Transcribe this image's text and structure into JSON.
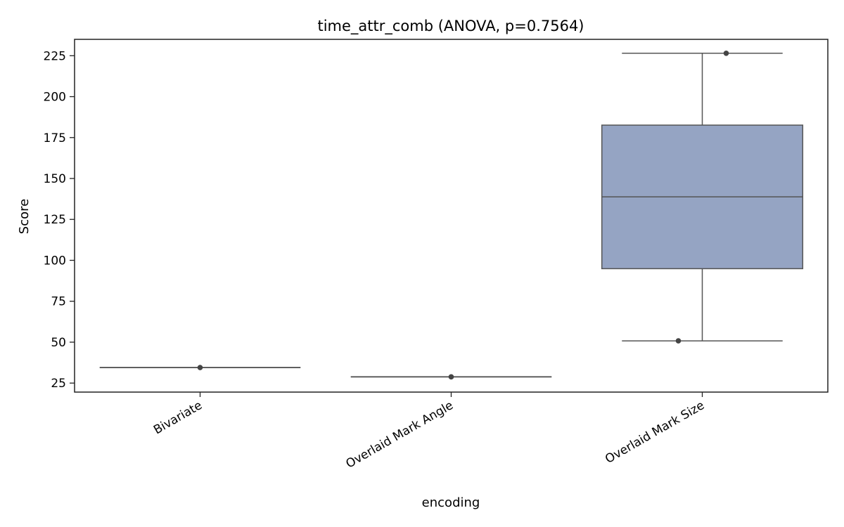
{
  "chart_data": {
    "type": "box",
    "title": "time_attr_comb (ANOVA, p=0.7564)",
    "xlabel": "encoding",
    "ylabel": "Score",
    "ylim": [
      19.5,
      235.0
    ],
    "yticks": [
      25,
      50,
      75,
      100,
      125,
      150,
      175,
      200,
      225
    ],
    "categories": [
      "Bivariate",
      "Overlaid Mark Angle",
      "Overlaid Mark Size"
    ],
    "boxes": [
      {
        "category": "Bivariate",
        "min": 34.5,
        "q1": 34.5,
        "median": 34.5,
        "q3": 34.5,
        "max": 34.5
      },
      {
        "category": "Overlaid Mark Angle",
        "min": 28.8,
        "q1": 28.8,
        "median": 28.8,
        "q3": 28.8,
        "max": 28.8
      },
      {
        "category": "Overlaid Mark Size",
        "min": 50.8,
        "q1": 94.9,
        "median": 138.8,
        "q3": 182.6,
        "max": 226.5
      }
    ],
    "points": [
      {
        "category": "Bivariate",
        "value": 34.5
      },
      {
        "category": "Overlaid Mark Angle",
        "value": 28.8
      },
      {
        "category": "Overlaid Mark Size",
        "value": 50.8
      },
      {
        "category": "Overlaid Mark Size",
        "value": 226.5
      }
    ],
    "colors": {
      "box_fill": "#95a4c3",
      "box_stroke": "#555555",
      "point": "#444444"
    },
    "grid": false
  }
}
